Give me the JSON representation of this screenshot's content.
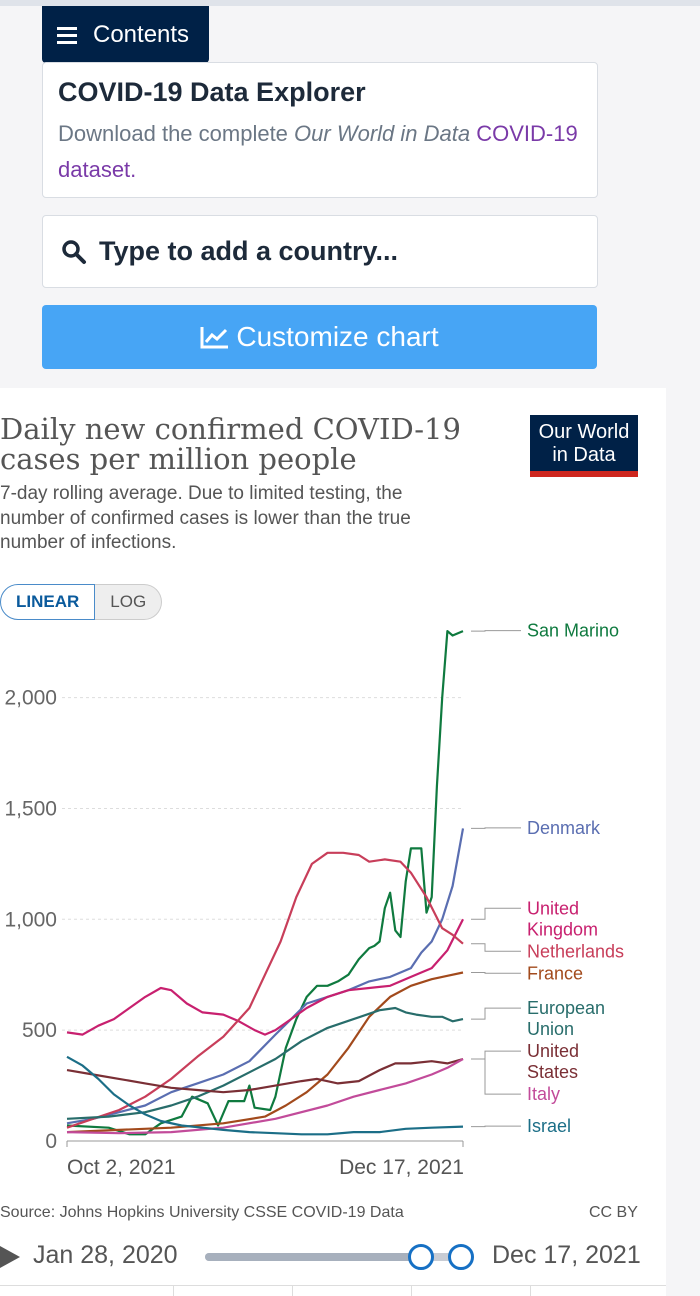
{
  "header": {
    "contents_label": "Contents"
  },
  "info": {
    "title": "COVID-19 Data Explorer",
    "desc_prefix": "Download the complete ",
    "desc_em": "Our World in Data",
    "desc_link": "COVID-19 dataset."
  },
  "search": {
    "placeholder": "Type to add a country..."
  },
  "customize": {
    "label": "Customize chart"
  },
  "logo": {
    "line1": "Our World",
    "line2": "in Data"
  },
  "scale": {
    "linear": "LINEAR",
    "log": "LOG"
  },
  "footer": {
    "source": "Source: Johns Hopkins University CSSE COVID-19 Data",
    "license": "CC BY"
  },
  "timeline": {
    "start_label": "Jan 28, 2020",
    "end_label": "Dec 17, 2021",
    "range_start_fraction": 0.91,
    "range_end_fraction": 1.0
  },
  "colors": {
    "navy": "#002147",
    "accent_blue": "#47a5f5",
    "logo_red": "#ce261e"
  },
  "chart_data": {
    "type": "line",
    "title": "Daily new confirmed COVID-19 cases per million people",
    "subtitle": "7-day rolling average. Due to limited testing, the number of confirmed cases is lower than the true number of infections.",
    "x_tick_labels": [
      "Oct 2, 2021",
      "Dec 17, 2021"
    ],
    "x_range_days": [
      0,
      76
    ],
    "x_tick_positions_days": [
      0,
      76
    ],
    "ylim": [
      0,
      2350
    ],
    "y_ticks": [
      0,
      500,
      1000,
      1500,
      2000
    ],
    "y_tick_labels": [
      "0",
      "500",
      "1,000",
      "1,500",
      "2,000"
    ],
    "grid": true,
    "legend": "right, inline labels",
    "series": [
      {
        "name": "San Marino",
        "color": "#0f7a3f",
        "points": [
          [
            0,
            70
          ],
          [
            8,
            60
          ],
          [
            12,
            30
          ],
          [
            15,
            30
          ],
          [
            18,
            80
          ],
          [
            22,
            110
          ],
          [
            24,
            200
          ],
          [
            27,
            170
          ],
          [
            29,
            70
          ],
          [
            31,
            180
          ],
          [
            34,
            180
          ],
          [
            35,
            250
          ],
          [
            36,
            150
          ],
          [
            39,
            140
          ],
          [
            40,
            200
          ],
          [
            42,
            420
          ],
          [
            44,
            550
          ],
          [
            46,
            650
          ],
          [
            48,
            700
          ],
          [
            50,
            700
          ],
          [
            52,
            720
          ],
          [
            54,
            750
          ],
          [
            56,
            820
          ],
          [
            58,
            870
          ],
          [
            59,
            880
          ],
          [
            60,
            900
          ],
          [
            61,
            1050
          ],
          [
            62,
            1120
          ],
          [
            63,
            950
          ],
          [
            64,
            920
          ],
          [
            65,
            1170
          ],
          [
            66,
            1320
          ],
          [
            68,
            1320
          ],
          [
            69,
            1030
          ],
          [
            70,
            1100
          ],
          [
            71,
            1600
          ],
          [
            72,
            2000
          ],
          [
            73,
            2300
          ],
          [
            74,
            2280
          ],
          [
            76,
            2300
          ]
        ]
      },
      {
        "name": "Denmark",
        "color": "#5a6eb1",
        "points": [
          [
            0,
            80
          ],
          [
            5,
            100
          ],
          [
            10,
            130
          ],
          [
            15,
            160
          ],
          [
            20,
            220
          ],
          [
            25,
            260
          ],
          [
            30,
            300
          ],
          [
            35,
            360
          ],
          [
            40,
            480
          ],
          [
            43,
            550
          ],
          [
            46,
            620
          ],
          [
            50,
            650
          ],
          [
            54,
            680
          ],
          [
            58,
            720
          ],
          [
            62,
            740
          ],
          [
            66,
            780
          ],
          [
            68,
            850
          ],
          [
            70,
            900
          ],
          [
            72,
            1000
          ],
          [
            74,
            1150
          ],
          [
            76,
            1410
          ]
        ]
      },
      {
        "name": "United Kingdom",
        "color": "#c8206f",
        "points": [
          [
            0,
            490
          ],
          [
            3,
            480
          ],
          [
            6,
            520
          ],
          [
            9,
            550
          ],
          [
            12,
            600
          ],
          [
            15,
            650
          ],
          [
            18,
            690
          ],
          [
            20,
            680
          ],
          [
            23,
            620
          ],
          [
            26,
            580
          ],
          [
            30,
            570
          ],
          [
            33,
            540
          ],
          [
            36,
            500
          ],
          [
            38,
            480
          ],
          [
            40,
            500
          ],
          [
            43,
            550
          ],
          [
            46,
            600
          ],
          [
            50,
            650
          ],
          [
            54,
            680
          ],
          [
            58,
            690
          ],
          [
            62,
            700
          ],
          [
            66,
            740
          ],
          [
            70,
            780
          ],
          [
            73,
            860
          ],
          [
            76,
            1000
          ]
        ]
      },
      {
        "name": "Netherlands",
        "color": "#c83e5a",
        "points": [
          [
            0,
            60
          ],
          [
            5,
            100
          ],
          [
            10,
            140
          ],
          [
            15,
            200
          ],
          [
            20,
            280
          ],
          [
            25,
            380
          ],
          [
            30,
            470
          ],
          [
            35,
            600
          ],
          [
            38,
            750
          ],
          [
            41,
            900
          ],
          [
            44,
            1100
          ],
          [
            47,
            1250
          ],
          [
            50,
            1300
          ],
          [
            53,
            1300
          ],
          [
            56,
            1290
          ],
          [
            58,
            1260
          ],
          [
            61,
            1270
          ],
          [
            64,
            1260
          ],
          [
            66,
            1210
          ],
          [
            69,
            1100
          ],
          [
            72,
            960
          ],
          [
            74,
            930
          ],
          [
            76,
            890
          ]
        ]
      },
      {
        "name": "France",
        "color": "#a24a1c",
        "points": [
          [
            0,
            40
          ],
          [
            10,
            50
          ],
          [
            20,
            60
          ],
          [
            30,
            80
          ],
          [
            38,
            110
          ],
          [
            42,
            160
          ],
          [
            46,
            220
          ],
          [
            50,
            300
          ],
          [
            54,
            420
          ],
          [
            58,
            560
          ],
          [
            62,
            650
          ],
          [
            66,
            700
          ],
          [
            70,
            730
          ],
          [
            73,
            745
          ],
          [
            76,
            760
          ]
        ]
      },
      {
        "name": "European Union",
        "color": "#286d6b",
        "points": [
          [
            0,
            100
          ],
          [
            8,
            110
          ],
          [
            15,
            130
          ],
          [
            20,
            160
          ],
          [
            25,
            200
          ],
          [
            30,
            250
          ],
          [
            35,
            310
          ],
          [
            40,
            370
          ],
          [
            45,
            450
          ],
          [
            50,
            510
          ],
          [
            55,
            550
          ],
          [
            60,
            590
          ],
          [
            63,
            600
          ],
          [
            65,
            580
          ],
          [
            67,
            570
          ],
          [
            70,
            560
          ],
          [
            72,
            560
          ],
          [
            74,
            540
          ],
          [
            76,
            550
          ]
        ]
      },
      {
        "name": "United States",
        "color": "#7a2f35",
        "points": [
          [
            0,
            320
          ],
          [
            5,
            300
          ],
          [
            10,
            280
          ],
          [
            15,
            260
          ],
          [
            20,
            240
          ],
          [
            25,
            230
          ],
          [
            30,
            220
          ],
          [
            35,
            230
          ],
          [
            40,
            250
          ],
          [
            45,
            270
          ],
          [
            48,
            280
          ],
          [
            52,
            260
          ],
          [
            56,
            270
          ],
          [
            60,
            320
          ],
          [
            63,
            350
          ],
          [
            66,
            350
          ],
          [
            70,
            360
          ],
          [
            73,
            350
          ],
          [
            76,
            370
          ]
        ]
      },
      {
        "name": "Italy",
        "color": "#c24b9a",
        "points": [
          [
            0,
            40
          ],
          [
            10,
            35
          ],
          [
            20,
            40
          ],
          [
            30,
            60
          ],
          [
            40,
            100
          ],
          [
            50,
            160
          ],
          [
            55,
            200
          ],
          [
            60,
            230
          ],
          [
            65,
            260
          ],
          [
            70,
            300
          ],
          [
            73,
            330
          ],
          [
            76,
            370
          ]
        ]
      },
      {
        "name": "Israel",
        "color": "#1b6e87",
        "points": [
          [
            0,
            380
          ],
          [
            3,
            340
          ],
          [
            6,
            280
          ],
          [
            9,
            210
          ],
          [
            12,
            160
          ],
          [
            15,
            120
          ],
          [
            18,
            90
          ],
          [
            22,
            70
          ],
          [
            26,
            60
          ],
          [
            30,
            50
          ],
          [
            35,
            40
          ],
          [
            40,
            35
          ],
          [
            45,
            30
          ],
          [
            50,
            30
          ],
          [
            55,
            40
          ],
          [
            60,
            40
          ],
          [
            65,
            55
          ],
          [
            70,
            60
          ],
          [
            76,
            65
          ]
        ]
      }
    ]
  }
}
